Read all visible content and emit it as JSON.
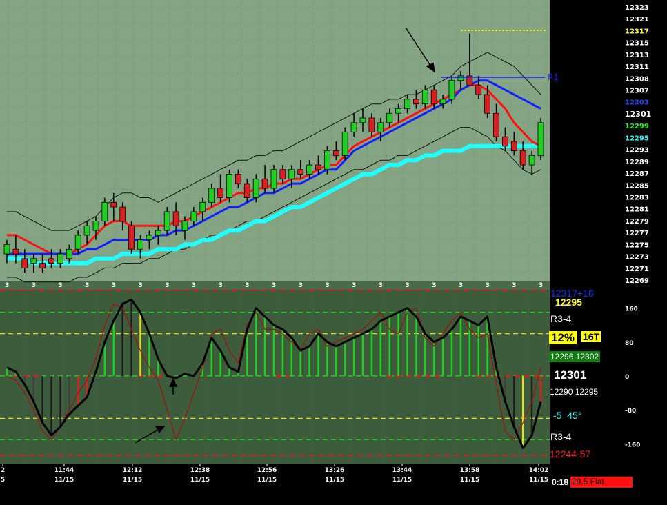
{
  "colors": {
    "upper_bg": "#84a484",
    "lower_bg": "#3c5c3c",
    "axis_bg": "#000000",
    "up_candle": "#20d020",
    "down_candle": "#d82020",
    "neutral_candle": "#101010",
    "ema_fast": "#ff1010",
    "ema_mid": "#1020ff",
    "ema_slow": "#20ffff",
    "envelope": "#101010",
    "osc_line": "#000000",
    "osc_signal": "#a01010",
    "level_green": "#20d020",
    "level_yellow": "#e0e020"
  },
  "header": {
    "last_price": "12301"
  },
  "price_axis": {
    "labels": [
      "12323",
      "12321",
      "12317",
      "12315",
      "12313",
      "12311",
      "12308",
      "12307",
      "12303",
      "12301",
      "12299",
      "12295",
      "12293",
      "12289",
      "12287",
      "12285",
      "12283",
      "12281",
      "12279",
      "12277",
      "12275",
      "12273",
      "12271",
      "12269"
    ],
    "highlight_yellow": "12317",
    "highlight_blue": "12303",
    "highlight_white": "12301",
    "highlight_green": "12299",
    "highlight_cyan": "12295"
  },
  "r1_label": "R1",
  "osc_axis": {
    "labels": [
      "160",
      "80",
      "0",
      "-80",
      "-160"
    ]
  },
  "osc_panel": {
    "top_line1": "12317+16",
    "top_line2": "12295",
    "r34_top": "R3-4",
    "pct": "12%",
    "ticks": "16T",
    "range_pair": "12296 12302",
    "mid_price": "12301",
    "low_pair": "12290 12295",
    "angle": "-5  45°",
    "r34_bottom": "R3-4",
    "bottom_red": "12244-57"
  },
  "bar_marker": "3",
  "time_axis": {
    "labels": [
      {
        "time": "2",
        "date": "5"
      },
      {
        "time": "11:44",
        "date": "11/15"
      },
      {
        "time": "12:12",
        "date": "11/15"
      },
      {
        "time": "12:38",
        "date": "11/15"
      },
      {
        "time": "12:56",
        "date": "11/15"
      },
      {
        "time": "13:26",
        "date": "11/15"
      },
      {
        "time": "13:44",
        "date": "11/15"
      },
      {
        "time": "13:58",
        "date": "11/15"
      },
      {
        "time": "14:02",
        "date": "11/15"
      }
    ]
  },
  "status": {
    "timer": "0:18",
    "flat": "29.5 Flat"
  },
  "chart_data": [
    {
      "type": "candlestick",
      "title": "",
      "ylim": [
        12267,
        12325
      ],
      "candles": [
        {
          "o": 12272,
          "h": 12275,
          "l": 12270,
          "c": 12274
        },
        {
          "o": 12273,
          "h": 12276,
          "l": 12270,
          "c": 12272
        },
        {
          "o": 12271,
          "h": 12273,
          "l": 12268,
          "c": 12269
        },
        {
          "o": 12270,
          "h": 12272,
          "l": 12268,
          "c": 12271
        },
        {
          "o": 12270,
          "h": 12272,
          "l": 12268,
          "c": 12269
        },
        {
          "o": 12271,
          "h": 12273,
          "l": 12269,
          "c": 12270
        },
        {
          "o": 12270,
          "h": 12273,
          "l": 12269,
          "c": 12272
        },
        {
          "o": 12271,
          "h": 12274,
          "l": 12270,
          "c": 12273
        },
        {
          "o": 12273,
          "h": 12277,
          "l": 12272,
          "c": 12276
        },
        {
          "o": 12276,
          "h": 12279,
          "l": 12274,
          "c": 12278
        },
        {
          "o": 12277,
          "h": 12280,
          "l": 12275,
          "c": 12279
        },
        {
          "o": 12279,
          "h": 12284,
          "l": 12278,
          "c": 12283
        },
        {
          "o": 12283,
          "h": 12285,
          "l": 12279,
          "c": 12282
        },
        {
          "o": 12282,
          "h": 12283,
          "l": 12277,
          "c": 12279
        },
        {
          "o": 12278,
          "h": 12279,
          "l": 12272,
          "c": 12273
        },
        {
          "o": 12273,
          "h": 12276,
          "l": 12271,
          "c": 12275
        },
        {
          "o": 12275,
          "h": 12277,
          "l": 12273,
          "c": 12276
        },
        {
          "o": 12276,
          "h": 12278,
          "l": 12274,
          "c": 12277
        },
        {
          "o": 12277,
          "h": 12282,
          "l": 12276,
          "c": 12281
        },
        {
          "o": 12281,
          "h": 12283,
          "l": 12276,
          "c": 12278
        },
        {
          "o": 12277,
          "h": 12280,
          "l": 12275,
          "c": 12279
        },
        {
          "o": 12279,
          "h": 12282,
          "l": 12278,
          "c": 12281
        },
        {
          "o": 12281,
          "h": 12284,
          "l": 12279,
          "c": 12283
        },
        {
          "o": 12283,
          "h": 12287,
          "l": 12282,
          "c": 12286
        },
        {
          "o": 12286,
          "h": 12289,
          "l": 12283,
          "c": 12284
        },
        {
          "o": 12284,
          "h": 12290,
          "l": 12283,
          "c": 12289
        },
        {
          "o": 12289,
          "h": 12290,
          "l": 12286,
          "c": 12287
        },
        {
          "o": 12287,
          "h": 12288,
          "l": 12283,
          "c": 12284
        },
        {
          "o": 12284,
          "h": 12289,
          "l": 12283,
          "c": 12288
        },
        {
          "o": 12288,
          "h": 12291,
          "l": 12285,
          "c": 12286
        },
        {
          "o": 12286,
          "h": 12291,
          "l": 12285,
          "c": 12290
        },
        {
          "o": 12290,
          "h": 12291,
          "l": 12287,
          "c": 12288
        },
        {
          "o": 12288,
          "h": 12291,
          "l": 12286,
          "c": 12290
        },
        {
          "o": 12290,
          "h": 12292,
          "l": 12288,
          "c": 12289
        },
        {
          "o": 12289,
          "h": 12292,
          "l": 12288,
          "c": 12291
        },
        {
          "o": 12291,
          "h": 12293,
          "l": 12289,
          "c": 12290
        },
        {
          "o": 12290,
          "h": 12295,
          "l": 12289,
          "c": 12294
        },
        {
          "o": 12294,
          "h": 12296,
          "l": 12292,
          "c": 12293
        },
        {
          "o": 12293,
          "h": 12299,
          "l": 12292,
          "c": 12298
        },
        {
          "o": 12298,
          "h": 12302,
          "l": 12297,
          "c": 12300
        },
        {
          "o": 12300,
          "h": 12303,
          "l": 12298,
          "c": 12301
        },
        {
          "o": 12301,
          "h": 12302,
          "l": 12297,
          "c": 12298
        },
        {
          "o": 12298,
          "h": 12301,
          "l": 12296,
          "c": 12300
        },
        {
          "o": 12300,
          "h": 12303,
          "l": 12299,
          "c": 12302
        },
        {
          "o": 12302,
          "h": 12304,
          "l": 12300,
          "c": 12303
        },
        {
          "o": 12303,
          "h": 12306,
          "l": 12302,
          "c": 12305
        },
        {
          "o": 12305,
          "h": 12307,
          "l": 12303,
          "c": 12304
        },
        {
          "o": 12304,
          "h": 12308,
          "l": 12303,
          "c": 12307
        },
        {
          "o": 12307,
          "h": 12308,
          "l": 12303,
          "c": 12304
        },
        {
          "o": 12304,
          "h": 12306,
          "l": 12303,
          "c": 12305
        },
        {
          "o": 12305,
          "h": 12310,
          "l": 12304,
          "c": 12309
        },
        {
          "o": 12309,
          "h": 12311,
          "l": 12307,
          "c": 12310
        },
        {
          "o": 12310,
          "h": 12319,
          "l": 12308,
          "c": 12308
        },
        {
          "o": 12308,
          "h": 12310,
          "l": 12305,
          "c": 12306
        },
        {
          "o": 12306,
          "h": 12308,
          "l": 12301,
          "c": 12302
        },
        {
          "o": 12302,
          "h": 12304,
          "l": 12296,
          "c": 12297
        },
        {
          "o": 12297,
          "h": 12299,
          "l": 12294,
          "c": 12295
        },
        {
          "o": 12296,
          "h": 12298,
          "l": 12293,
          "c": 12294
        },
        {
          "o": 12294,
          "h": 12296,
          "l": 12290,
          "c": 12291
        },
        {
          "o": 12291,
          "h": 12294,
          "l": 12289,
          "c": 12293
        },
        {
          "o": 12293,
          "h": 12301,
          "l": 12292,
          "c": 12300
        }
      ],
      "ema_fast": [
        12276,
        12276,
        12275,
        12274,
        12273,
        12272,
        12272,
        12272,
        12273,
        12274,
        12276,
        12278,
        12279,
        12279,
        12278,
        12278,
        12278,
        12278,
        12278,
        12279,
        12279,
        12280,
        12281,
        12282,
        12283,
        12284,
        12285,
        12285,
        12286,
        12286,
        12287,
        12287,
        12288,
        12288,
        12289,
        12290,
        12291,
        12291,
        12293,
        12295,
        12296,
        12297,
        12298,
        12299,
        12300,
        12301,
        12302,
        12303,
        12304,
        12305,
        12306,
        12307,
        12308,
        12308,
        12307,
        12305,
        12303,
        12300,
        12298,
        12296,
        12295
      ],
      "ema_mid": [
        12272,
        12272,
        12272,
        12272,
        12272,
        12272,
        12272,
        12272,
        12272,
        12273,
        12273,
        12274,
        12275,
        12275,
        12275,
        12275,
        12275,
        12276,
        12276,
        12277,
        12277,
        12278,
        12279,
        12280,
        12281,
        12282,
        12282,
        12283,
        12284,
        12285,
        12285,
        12286,
        12287,
        12287,
        12288,
        12289,
        12290,
        12290,
        12292,
        12294,
        12295,
        12296,
        12297,
        12298,
        12299,
        12300,
        12301,
        12302,
        12303,
        12304,
        12305,
        12307,
        12308,
        12309,
        12309,
        12308,
        12307,
        12306,
        12305,
        12304,
        12303
      ],
      "ema_slow": [
        12271,
        12271,
        12271,
        12270,
        12270,
        12270,
        12270,
        12270,
        12270,
        12270,
        12271,
        12271,
        12271,
        12272,
        12272,
        12272,
        12272,
        12273,
        12273,
        12273,
        12274,
        12274,
        12275,
        12275,
        12276,
        12277,
        12277,
        12278,
        12279,
        12279,
        12280,
        12281,
        12282,
        12282,
        12283,
        12284,
        12285,
        12286,
        12287,
        12288,
        12289,
        12289,
        12290,
        12291,
        12291,
        12292,
        12292,
        12293,
        12293,
        12294,
        12294,
        12294,
        12295,
        12295,
        12295,
        12295,
        12295,
        12295,
        12295,
        12295,
        12295
      ],
      "env_upper": [
        12281,
        12281,
        12280,
        12279,
        12278,
        12277,
        12277,
        12277,
        12278,
        12279,
        12280,
        12282,
        12284,
        12285,
        12285,
        12284,
        12284,
        12283,
        12284,
        12285,
        12286,
        12287,
        12288,
        12289,
        12290,
        12291,
        12292,
        12292,
        12293,
        12293,
        12294,
        12294,
        12295,
        12296,
        12297,
        12298,
        12299,
        12300,
        12301,
        12302,
        12303,
        12304,
        12304,
        12305,
        12305,
        12306,
        12306,
        12307,
        12308,
        12309,
        12310,
        12312,
        12313,
        12314,
        12315,
        12314,
        12313,
        12312,
        12310,
        12308,
        12306
      ],
      "env_lower": [
        12267,
        12267,
        12266,
        12266,
        12266,
        12266,
        12266,
        12266,
        12267,
        12267,
        12268,
        12269,
        12269,
        12270,
        12270,
        12270,
        12271,
        12271,
        12272,
        12273,
        12273,
        12274,
        12275,
        12276,
        12276,
        12277,
        12278,
        12279,
        12279,
        12280,
        12281,
        12282,
        12283,
        12284,
        12285,
        12286,
        12287,
        12288,
        12289,
        12290,
        12290,
        12291,
        12292,
        12292,
        12293,
        12293,
        12294,
        12295,
        12296,
        12297,
        12298,
        12299,
        12299,
        12298,
        12297,
        12295,
        12294,
        12292,
        12290,
        12289,
        12290
      ]
    },
    {
      "type": "line",
      "title": "",
      "ylim": [
        -200,
        200
      ],
      "series": [
        {
          "values": [
            20,
            10,
            -20,
            -60,
            -110,
            -140,
            -120,
            -90,
            -70,
            -50,
            10,
            80,
            130,
            170,
            180,
            150,
            100,
            40,
            0,
            -5,
            5,
            0,
            30,
            90,
            60,
            20,
            10,
            110,
            160,
            140,
            120,
            110,
            90,
            60,
            70,
            100,
            80,
            70,
            80,
            90,
            100,
            110,
            130,
            140,
            150,
            160,
            140,
            100,
            80,
            90,
            110,
            140,
            130,
            120,
            140,
            20,
            -60,
            -120,
            -170,
            -140,
            -60
          ]
        },
        {
          "values": [
            0,
            -10,
            -40,
            -80,
            -130,
            -150,
            -120,
            -80,
            -40,
            -10,
            40,
            120,
            170,
            160,
            110,
            60,
            20,
            -10,
            -80,
            -150,
            -100,
            -40,
            20,
            100,
            110,
            60,
            30,
            120,
            150,
            110,
            110,
            100,
            80,
            60,
            100,
            110,
            70,
            80,
            90,
            100,
            110,
            130,
            150,
            110,
            100,
            150,
            160,
            90,
            70,
            100,
            130,
            150,
            110,
            90,
            100,
            -20,
            -130,
            -150,
            -110,
            -60,
            20
          ]
        }
      ],
      "level_lines": [
        150,
        100,
        0,
        -100,
        -150
      ]
    }
  ]
}
